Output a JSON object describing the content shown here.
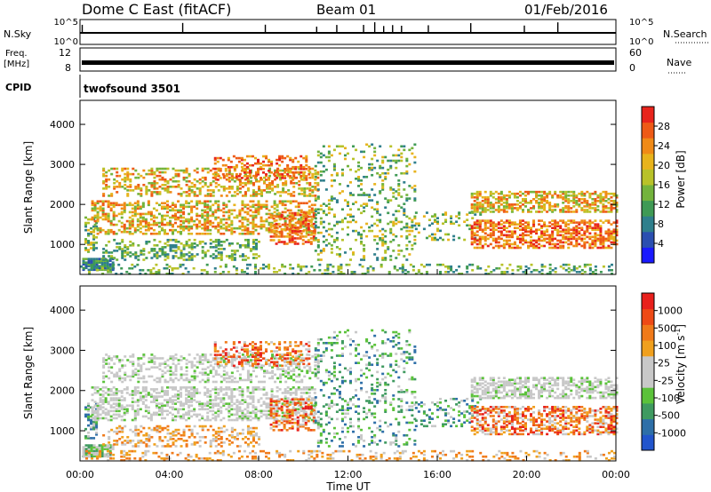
{
  "header": {
    "station": "Dome C East (fitACF)",
    "beam": "Beam 01",
    "date": "01/Feb/2016"
  },
  "status_panels": {
    "nsky_label": "N.Sky",
    "nsky_ticks": [
      "10^5",
      "10^0"
    ],
    "nsearch_label": "N.Search",
    "nsearch_ticks": [
      "10^5",
      "10^0"
    ],
    "freq_label_top": "Freq.",
    "freq_label_unit": "[MHz]",
    "freq_ticks": [
      "12",
      "8"
    ],
    "nave_label": "Nave",
    "nave_ticks": [
      "60",
      "0"
    ],
    "cpid_label": "CPID",
    "cpid_value": "twofsound 3501"
  },
  "chart_data": [
    {
      "type": "heatmap",
      "name": "power",
      "ylabel": "Slant Range [km]",
      "yticks": [
        "1000",
        "2000",
        "3000",
        "4000"
      ],
      "ylim": [
        250,
        4600
      ],
      "xlim": [
        0,
        24
      ],
      "colorbar": {
        "label": "Power [dB]",
        "ticks": [
          "4",
          "8",
          "12",
          "16",
          "20",
          "24",
          "28"
        ],
        "colors": [
          "#1a1aff",
          "#2b4fb0",
          "#2f7f8c",
          "#3f9a55",
          "#73b33c",
          "#b8c229",
          "#e8b31c",
          "#f08a17",
          "#ee5a16",
          "#e8241c"
        ]
      }
    },
    {
      "type": "heatmap",
      "name": "velocity",
      "ylabel": "Slant Range [km]",
      "yticks": [
        "1000",
        "2000",
        "3000",
        "4000"
      ],
      "ylim": [
        250,
        4600
      ],
      "xlim": [
        0,
        24
      ],
      "xticks": [
        "00:00",
        "04:00",
        "08:00",
        "12:00",
        "16:00",
        "20:00",
        "00:00"
      ],
      "xlabel": "Time UT",
      "colorbar": {
        "label": "Velocity [m s",
        "label_sup": "-1",
        "label_end": "]",
        "ticks": [
          "1000",
          "500",
          "100",
          "25",
          "-25",
          "-100",
          "-500",
          "-1000"
        ],
        "colors": [
          "#2255cc",
          "#2e6fa8",
          "#3f9a60",
          "#5bc23a",
          "#c8c8c8",
          "#c8c8c8",
          "#f0a01e",
          "#f07a1a",
          "#ee4a16",
          "#e8201c"
        ]
      }
    }
  ]
}
